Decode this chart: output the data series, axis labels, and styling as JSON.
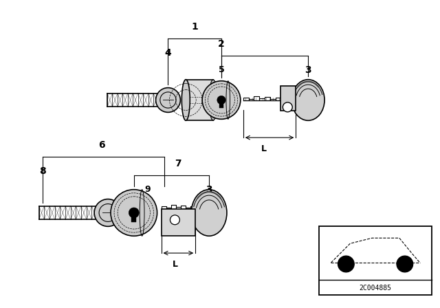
{
  "bg_color": "#ffffff",
  "part_number": "2C004885",
  "black": "#000000",
  "gray": "#888888",
  "light_gray": "#cccccc",
  "dark_gray": "#555555"
}
